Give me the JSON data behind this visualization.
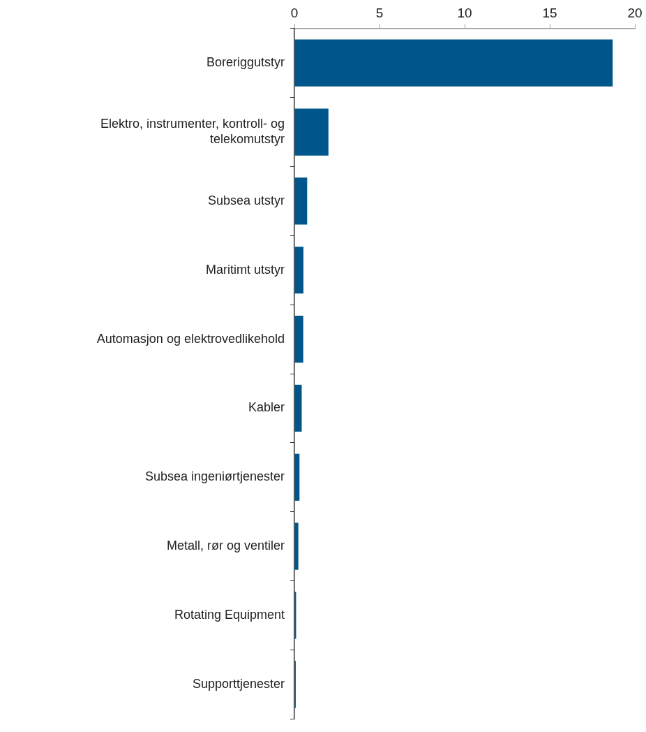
{
  "chart_data": {
    "type": "bar",
    "orientation": "horizontal",
    "categories": [
      "Boreriggutstyr",
      "Elektro, instrumenter, kontroll- og telekomutstyr",
      "Subsea utstyr",
      "Maritimt utstyr",
      "Automasjon og elektrovedlikehold",
      "Kabler",
      "Subsea ingeniørtjenester",
      "Metall, rør og ventiler",
      "Rotating Equipment",
      "Supporttjenester"
    ],
    "values": [
      18.7,
      2.0,
      0.75,
      0.53,
      0.52,
      0.43,
      0.3,
      0.23,
      0.1,
      0.08
    ],
    "color": "#00568a",
    "xlim": [
      0,
      20
    ],
    "xticks": [
      0,
      5,
      10,
      15,
      20
    ],
    "grid": false,
    "legend": false
  }
}
